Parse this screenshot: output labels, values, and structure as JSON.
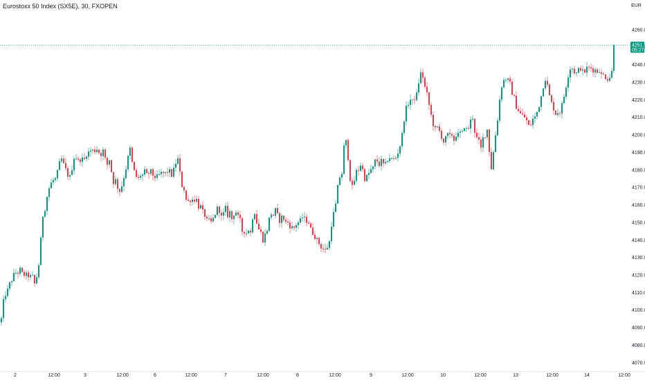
{
  "header": {
    "symbol_title": "Eurostoxx 50 Index (SX5E), 30, FXOPEN",
    "currency": "EUR"
  },
  "colors": {
    "up": "#089981",
    "down": "#f23645",
    "last_price_line": "#26a69a",
    "axis_text": "#131722"
  },
  "chart_data": {
    "type": "candlestick",
    "title": "Eurostoxx 50 Index (SX5E), 30, FXOPEN",
    "y_ticks": [
      4070.0,
      4080.0,
      4090.0,
      4100.0,
      4110.0,
      4120.0,
      4130.0,
      4140.0,
      4150.0,
      4160.0,
      4170.0,
      4180.0,
      4190.0,
      4200.0,
      4210.0,
      4220.0,
      4230.0,
      4240.0,
      4250.0,
      4260.0
    ],
    "ylim": [
      4066,
      4269
    ],
    "x_ticks": [
      "2",
      "12:00",
      "3",
      "12:00",
      "6",
      "12:00",
      "7",
      "12:00",
      "8",
      "12:00",
      "9",
      "12:00",
      "10",
      "12:00",
      "13",
      "12:00",
      "14",
      "12:00"
    ],
    "last_price": "4251.1",
    "countdown": "05:27",
    "close_path": [
      [
        0,
        4093
      ],
      [
        2,
        4095
      ],
      [
        6,
        4108
      ],
      [
        10,
        4110
      ],
      [
        14,
        4115
      ],
      [
        18,
        4118
      ],
      [
        22,
        4122
      ],
      [
        25,
        4120
      ],
      [
        28,
        4124
      ],
      [
        31,
        4121
      ],
      [
        35,
        4120
      ],
      [
        39,
        4120
      ],
      [
        43,
        4119
      ],
      [
        47,
        4119
      ],
      [
        50,
        4115
      ],
      [
        53,
        4119
      ],
      [
        56,
        4126
      ],
      [
        59,
        4140
      ],
      [
        62,
        4154
      ],
      [
        65,
        4158
      ],
      [
        69,
        4167
      ],
      [
        73,
        4172
      ],
      [
        77,
        4174
      ],
      [
        81,
        4175
      ],
      [
        85,
        4182
      ],
      [
        88,
        4187
      ],
      [
        91,
        4184
      ],
      [
        95,
        4180
      ],
      [
        98,
        4177
      ],
      [
        101,
        4176
      ],
      [
        104,
        4181
      ],
      [
        107,
        4187
      ],
      [
        110,
        4187
      ],
      [
        113,
        4185
      ],
      [
        116,
        4186
      ],
      [
        119,
        4186
      ],
      [
        122,
        4186
      ],
      [
        125,
        4189
      ],
      [
        128,
        4190
      ],
      [
        131,
        4191
      ],
      [
        134,
        4191
      ],
      [
        137,
        4191
      ],
      [
        140,
        4192
      ],
      [
        143,
        4190
      ],
      [
        146,
        4189
      ],
      [
        149,
        4191
      ],
      [
        152,
        4186
      ],
      [
        155,
        4183
      ],
      [
        158,
        4186
      ],
      [
        161,
        4179
      ],
      [
        164,
        4173
      ],
      [
        167,
        4174
      ],
      [
        170,
        4170
      ],
      [
        173,
        4168
      ],
      [
        176,
        4171
      ],
      [
        179,
        4176
      ],
      [
        182,
        4181
      ],
      [
        185,
        4187
      ],
      [
        188,
        4192
      ],
      [
        191,
        4184
      ],
      [
        194,
        4179
      ],
      [
        197,
        4176
      ],
      [
        200,
        4175
      ],
      [
        203,
        4177
      ],
      [
        206,
        4177
      ],
      [
        209,
        4179
      ],
      [
        212,
        4177
      ],
      [
        215,
        4178
      ],
      [
        218,
        4179
      ],
      [
        221,
        4177
      ],
      [
        224,
        4176
      ],
      [
        227,
        4176
      ],
      [
        230,
        4177
      ],
      [
        233,
        4178
      ],
      [
        236,
        4178
      ],
      [
        239,
        4178
      ],
      [
        242,
        4179
      ],
      [
        245,
        4179
      ],
      [
        248,
        4177
      ],
      [
        251,
        4180
      ],
      [
        254,
        4184
      ],
      [
        257,
        4186
      ],
      [
        260,
        4178
      ],
      [
        263,
        4171
      ],
      [
        266,
        4169
      ],
      [
        269,
        4163
      ],
      [
        272,
        4162
      ],
      [
        275,
        4163
      ],
      [
        278,
        4163
      ],
      [
        281,
        4163
      ],
      [
        284,
        4163
      ],
      [
        287,
        4159
      ],
      [
        290,
        4159
      ],
      [
        293,
        4156
      ],
      [
        296,
        4154
      ],
      [
        299,
        4151
      ],
      [
        302,
        4151
      ],
      [
        305,
        4150
      ],
      [
        308,
        4152
      ],
      [
        311,
        4155
      ],
      [
        314,
        4158
      ],
      [
        317,
        4157
      ],
      [
        320,
        4153
      ],
      [
        323,
        4155
      ],
      [
        326,
        4158
      ],
      [
        329,
        4154
      ],
      [
        332,
        4156
      ],
      [
        335,
        4152
      ],
      [
        338,
        4155
      ],
      [
        341,
        4156
      ],
      [
        344,
        4153
      ],
      [
        347,
        4151
      ],
      [
        350,
        4145
      ],
      [
        353,
        4145
      ],
      [
        356,
        4144
      ],
      [
        359,
        4146
      ],
      [
        362,
        4144
      ],
      [
        365,
        4153
      ],
      [
        368,
        4156
      ],
      [
        371,
        4150
      ],
      [
        374,
        4146
      ],
      [
        377,
        4144
      ],
      [
        380,
        4140
      ],
      [
        383,
        4143
      ],
      [
        386,
        4146
      ],
      [
        389,
        4152
      ],
      [
        392,
        4155
      ],
      [
        395,
        4154
      ],
      [
        398,
        4157
      ],
      [
        401,
        4154
      ],
      [
        404,
        4151
      ],
      [
        407,
        4153
      ],
      [
        410,
        4152
      ],
      [
        413,
        4150
      ],
      [
        416,
        4150
      ],
      [
        419,
        4148
      ],
      [
        422,
        4147
      ],
      [
        425,
        4147
      ],
      [
        428,
        4149
      ],
      [
        431,
        4150
      ],
      [
        434,
        4151
      ],
      [
        437,
        4153
      ],
      [
        440,
        4152
      ],
      [
        443,
        4151
      ],
      [
        446,
        4150
      ],
      [
        449,
        4146
      ],
      [
        452,
        4144
      ],
      [
        455,
        4142
      ],
      [
        458,
        4140
      ],
      [
        461,
        4138
      ],
      [
        464,
        4136
      ],
      [
        467,
        4135
      ],
      [
        470,
        4134
      ],
      [
        473,
        4136
      ],
      [
        476,
        4139
      ],
      [
        479,
        4149
      ],
      [
        482,
        4155
      ],
      [
        485,
        4160
      ],
      [
        488,
        4170
      ],
      [
        491,
        4176
      ],
      [
        494,
        4178
      ],
      [
        497,
        4193
      ],
      [
        500,
        4196
      ],
      [
        503,
        4187
      ],
      [
        506,
        4175
      ],
      [
        509,
        4170
      ],
      [
        512,
        4174
      ],
      [
        515,
        4179
      ],
      [
        518,
        4180
      ],
      [
        521,
        4183
      ],
      [
        524,
        4180
      ],
      [
        527,
        4175
      ],
      [
        530,
        4176
      ],
      [
        533,
        4178
      ],
      [
        536,
        4180
      ],
      [
        539,
        4181
      ],
      [
        542,
        4185
      ],
      [
        545,
        4185
      ],
      [
        548,
        4183
      ],
      [
        551,
        4185
      ],
      [
        554,
        4183
      ],
      [
        557,
        4183
      ],
      [
        560,
        4186
      ],
      [
        563,
        4187
      ],
      [
        566,
        4186
      ],
      [
        569,
        4186
      ],
      [
        572,
        4187
      ],
      [
        575,
        4190
      ],
      [
        578,
        4194
      ],
      [
        581,
        4200
      ],
      [
        584,
        4209
      ],
      [
        587,
        4215
      ],
      [
        590,
        4218
      ],
      [
        593,
        4220
      ],
      [
        596,
        4219
      ],
      [
        599,
        4221
      ],
      [
        602,
        4223
      ],
      [
        605,
        4230
      ],
      [
        608,
        4235
      ],
      [
        611,
        4233
      ],
      [
        614,
        4227
      ],
      [
        617,
        4223
      ],
      [
        620,
        4217
      ],
      [
        623,
        4211
      ],
      [
        626,
        4206
      ],
      [
        629,
        4203
      ],
      [
        632,
        4204
      ],
      [
        635,
        4202
      ],
      [
        638,
        4199
      ],
      [
        641,
        4196
      ],
      [
        644,
        4198
      ],
      [
        647,
        4200
      ],
      [
        650,
        4199
      ],
      [
        653,
        4200
      ],
      [
        656,
        4197
      ],
      [
        659,
        4200
      ],
      [
        662,
        4200
      ],
      [
        665,
        4201
      ],
      [
        668,
        4201
      ],
      [
        671,
        4205
      ],
      [
        674,
        4203
      ],
      [
        677,
        4204
      ],
      [
        680,
        4208
      ],
      [
        683,
        4210
      ],
      [
        686,
        4202
      ],
      [
        689,
        4198
      ],
      [
        692,
        4196
      ],
      [
        695,
        4192
      ],
      [
        698,
        4198
      ],
      [
        701,
        4200
      ],
      [
        704,
        4203
      ],
      [
        707,
        4191
      ],
      [
        710,
        4181
      ],
      [
        713,
        4190
      ],
      [
        716,
        4200
      ],
      [
        719,
        4209
      ],
      [
        722,
        4220
      ],
      [
        725,
        4228
      ],
      [
        728,
        4231
      ],
      [
        731,
        4232
      ],
      [
        734,
        4231
      ],
      [
        737,
        4229
      ],
      [
        740,
        4224
      ],
      [
        743,
        4221
      ],
      [
        746,
        4216
      ],
      [
        749,
        4214
      ],
      [
        752,
        4212
      ],
      [
        755,
        4211
      ],
      [
        758,
        4210
      ],
      [
        761,
        4208
      ],
      [
        764,
        4205
      ],
      [
        767,
        4206
      ],
      [
        770,
        4209
      ],
      [
        773,
        4210
      ],
      [
        776,
        4213
      ],
      [
        779,
        4217
      ],
      [
        782,
        4222
      ],
      [
        785,
        4228
      ],
      [
        788,
        4232
      ],
      [
        791,
        4228
      ],
      [
        794,
        4222
      ],
      [
        797,
        4218
      ],
      [
        800,
        4215
      ],
      [
        803,
        4212
      ],
      [
        806,
        4213
      ],
      [
        809,
        4213
      ],
      [
        812,
        4217
      ],
      [
        815,
        4222
      ],
      [
        818,
        4228
      ],
      [
        821,
        4234
      ],
      [
        824,
        4238
      ],
      [
        827,
        4238
      ],
      [
        830,
        4236
      ],
      [
        833,
        4235
      ],
      [
        836,
        4237
      ],
      [
        839,
        4238
      ],
      [
        842,
        4236
      ],
      [
        845,
        4236
      ],
      [
        848,
        4238
      ],
      [
        851,
        4238
      ],
      [
        854,
        4238
      ],
      [
        857,
        4237
      ],
      [
        860,
        4237
      ],
      [
        863,
        4236
      ],
      [
        866,
        4237
      ],
      [
        869,
        4234
      ],
      [
        872,
        4234
      ],
      [
        875,
        4233
      ],
      [
        878,
        4232
      ],
      [
        881,
        4233
      ],
      [
        884,
        4236
      ],
      [
        887,
        4245
      ],
      [
        889,
        4251
      ]
    ]
  }
}
